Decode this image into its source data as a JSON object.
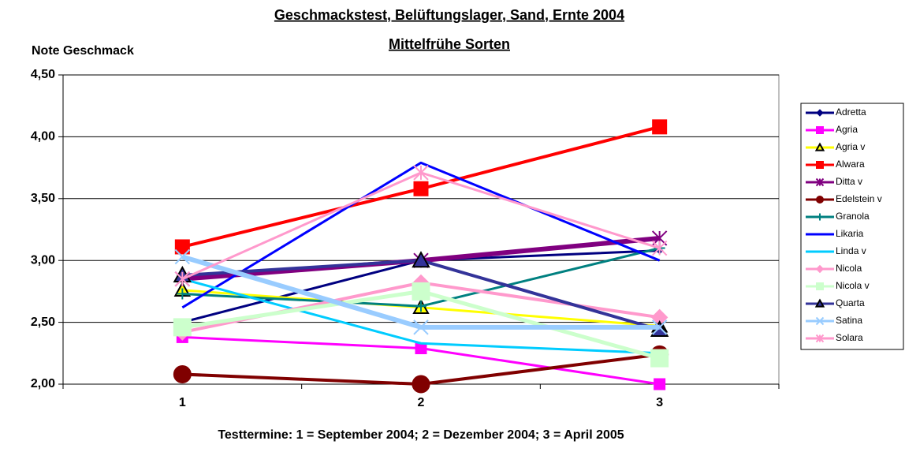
{
  "chart_data": {
    "type": "line",
    "title": "Geschmackstest, Belüftungslager, Sand, Ernte 2004",
    "subtitle": "Mittelfrühe Sorten",
    "y_label": "Note Geschmack",
    "x_label": "Testtermine: 1 = September 2004; 2 = Dezember 2004; 3 = April 2005",
    "categories": [
      "1",
      "2",
      "3"
    ],
    "ylim": [
      2.0,
      4.5
    ],
    "yticks": [
      {
        "value": 2.0,
        "label": "2,00"
      },
      {
        "value": 2.5,
        "label": "2,50"
      },
      {
        "value": 3.0,
        "label": "3,00"
      },
      {
        "value": 3.5,
        "label": "3,50"
      },
      {
        "value": 4.0,
        "label": "4,00"
      },
      {
        "value": 4.5,
        "label": "4,50"
      }
    ],
    "grid": true,
    "legend": "right",
    "series": [
      {
        "name": "Adretta",
        "color": "#000080",
        "marker": "diamond",
        "marker_size": 8,
        "line_width": 3,
        "values": [
          2.5,
          3.0,
          3.08
        ]
      },
      {
        "name": "Agria",
        "color": "#ff00ff",
        "marker": "square",
        "marker_size": 14,
        "line_width": 3,
        "values": [
          2.38,
          2.29,
          2.0
        ]
      },
      {
        "name": "Agria v",
        "color": "#ffff00",
        "marker": "triangle",
        "marker_size": 18,
        "line_width": 3,
        "values": [
          2.76,
          2.62,
          2.47
        ]
      },
      {
        "name": "Alwara",
        "color": "#ff0000",
        "marker": "square",
        "marker_size": 18,
        "line_width": 4,
        "values": [
          3.11,
          3.58,
          4.08
        ]
      },
      {
        "name": "Ditta v",
        "color": "#800080",
        "marker": "star",
        "marker_size": 18,
        "line_width": 6,
        "values": [
          2.85,
          3.0,
          3.18
        ]
      },
      {
        "name": "Edelstein v",
        "color": "#800000",
        "marker": "circle",
        "marker_size": 22,
        "line_width": 4,
        "values": [
          2.08,
          2.0,
          2.24
        ]
      },
      {
        "name": "Granola",
        "color": "#008080",
        "marker": "plus",
        "marker_size": 14,
        "line_width": 3,
        "values": [
          2.73,
          2.63,
          3.1
        ]
      },
      {
        "name": "Likaria",
        "color": "#0000ff",
        "marker": "none",
        "marker_size": 0,
        "line_width": 3,
        "values": [
          2.62,
          3.79,
          3.0
        ]
      },
      {
        "name": "Linda v",
        "color": "#00ccff",
        "marker": "none",
        "marker_size": 0,
        "line_width": 3,
        "values": [
          2.85,
          2.33,
          2.25
        ]
      },
      {
        "name": "Nicola",
        "color": "#ff99cc",
        "marker": "diamond",
        "marker_size": 20,
        "line_width": 4,
        "values": [
          2.42,
          2.82,
          2.54
        ]
      },
      {
        "name": "Nicola v",
        "color": "#ccffcc",
        "marker": "square",
        "marker_size": 22,
        "line_width": 5,
        "values": [
          2.46,
          2.75,
          2.21
        ]
      },
      {
        "name": "Quarta",
        "color": "#333399",
        "marker": "triangle",
        "marker_size": 20,
        "line_width": 4,
        "values": [
          2.88,
          3.0,
          2.44
        ]
      },
      {
        "name": "Satina",
        "color": "#99ccff",
        "marker": "x",
        "marker_size": 18,
        "line_width": 6,
        "values": [
          3.03,
          2.46,
          2.46
        ]
      },
      {
        "name": "Solara",
        "color": "#ff99cc",
        "marker": "star",
        "marker_size": 18,
        "line_width": 3,
        "values": [
          2.85,
          3.71,
          3.1
        ]
      }
    ]
  }
}
